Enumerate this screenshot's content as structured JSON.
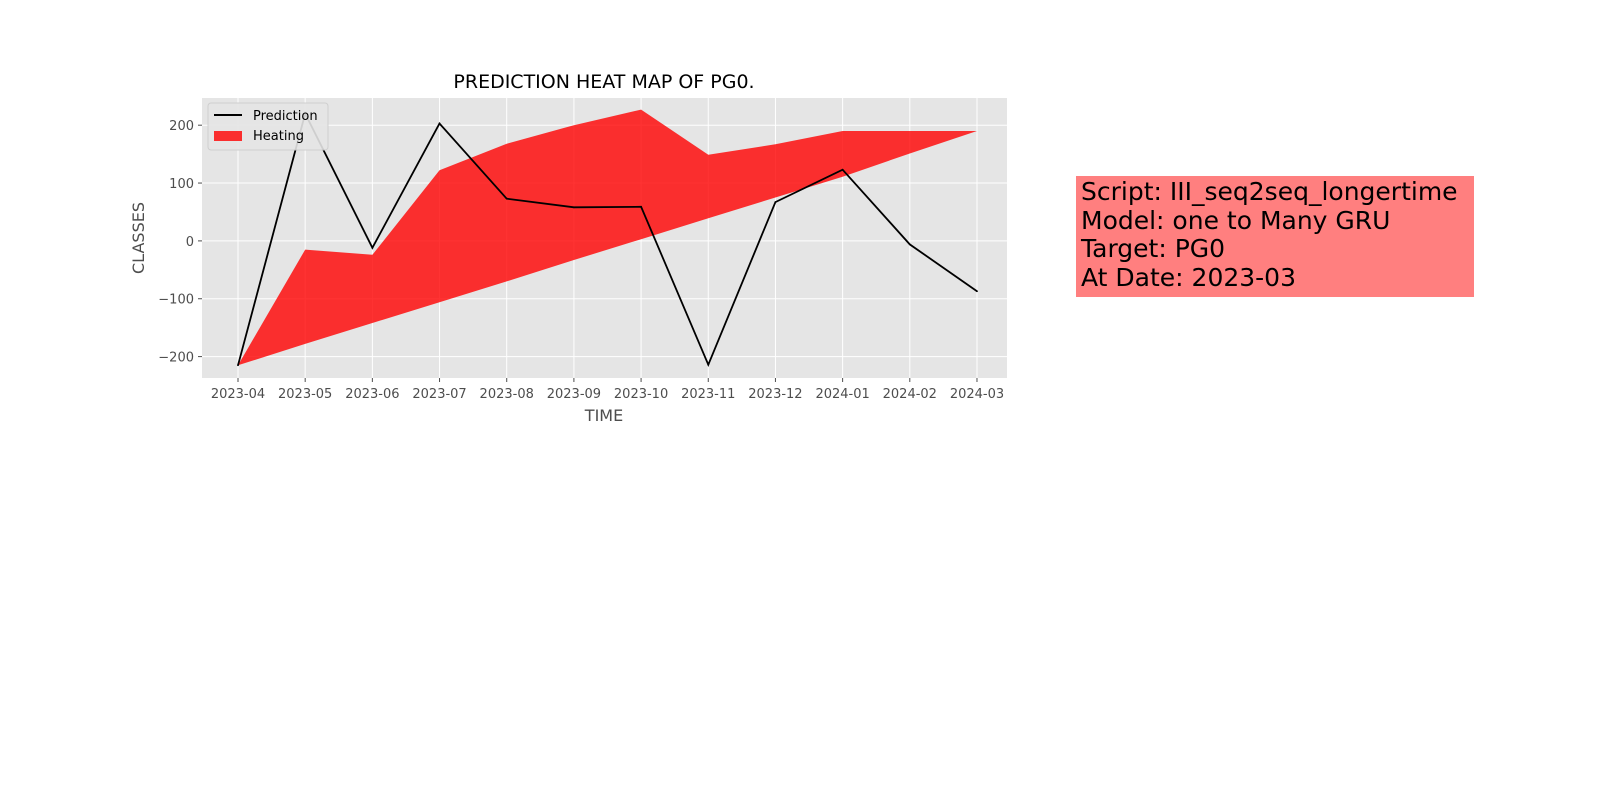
{
  "chart_data": {
    "type": "line",
    "title": "PREDICTION HEAT MAP OF PG0.",
    "xlabel": "TIME",
    "ylabel": "CLASSES",
    "x": [
      "2023-04",
      "2023-05",
      "2023-06",
      "2023-07",
      "2023-08",
      "2023-09",
      "2023-10",
      "2023-11",
      "2023-12",
      "2024-01",
      "2024-02",
      "2024-03"
    ],
    "yticks": [
      -200,
      -100,
      0,
      100,
      200
    ],
    "ylim": [
      -237,
      247
    ],
    "grid": true,
    "legend": {
      "placement": "upper-left",
      "entries": [
        "Prediction",
        "Heating"
      ]
    },
    "series": [
      {
        "name": "Prediction",
        "kind": "line",
        "color": "#000000",
        "values": [
          -215,
          220,
          -12,
          203,
          73,
          58,
          59,
          -214,
          67,
          123,
          -6,
          -87
        ]
      },
      {
        "name": "Heating",
        "kind": "area",
        "color": "#ff0000",
        "upper": [
          -215,
          -15,
          -24,
          122,
          168,
          200,
          227,
          149,
          167,
          190,
          190,
          190
        ],
        "lower": [
          -215,
          -178,
          -142,
          -106,
          -70,
          -33,
          3,
          39,
          75,
          111,
          151,
          190
        ]
      }
    ]
  },
  "info_box": {
    "color": "#ff7f7f",
    "lines": [
      "Script: III_seq2seq_longertime",
      "Model: one to Many GRU",
      "Target: PG0",
      "At Date: 2023-03"
    ]
  }
}
